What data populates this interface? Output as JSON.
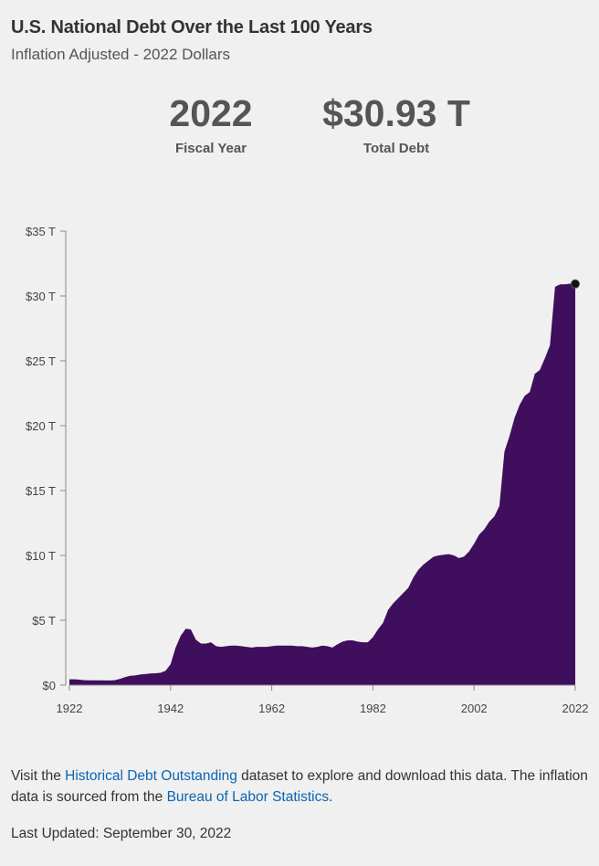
{
  "header": {
    "title": "U.S. National Debt Over the Last 100 Years",
    "subtitle": "Inflation Adjusted - 2022 Dollars"
  },
  "stats": {
    "year_value": "2022",
    "year_label": "Fiscal Year",
    "debt_value": "$30.93 T",
    "debt_label": "Total Debt"
  },
  "footer": {
    "text_1": "Visit the ",
    "link_1": "Historical Debt Outstanding",
    "text_2": " dataset to explore and download this data. The inflation data is sourced from the ",
    "link_2": "Bureau of Labor Statistics",
    "text_3": ".",
    "updated": "Last Updated: September 30, 2022"
  },
  "colors": {
    "area_fill": "#3f0e5c",
    "axis": "#888888",
    "link": "#0a64b4",
    "marker": "#111111"
  },
  "chart_data": {
    "type": "area",
    "title": "",
    "xlabel": "",
    "ylabel": "",
    "x_ticks": [
      "1922",
      "1942",
      "1962",
      "1982",
      "2002",
      "2022"
    ],
    "y_ticks": [
      "$0",
      "$5 T",
      "$10 T",
      "$15 T",
      "$20 T",
      "$25 T",
      "$30 T",
      "$35 T"
    ],
    "xlim": [
      1922,
      2022
    ],
    "ylim": [
      0,
      35
    ],
    "y_unit": "trillions of 2022 dollars",
    "grid": false,
    "highlight": {
      "x": 2022,
      "y": 30.93
    },
    "series": [
      {
        "x": [
          1922,
          1923,
          1924,
          1925,
          1926,
          1927,
          1928,
          1929,
          1930,
          1931,
          1932,
          1933,
          1934,
          1935,
          1936,
          1937,
          1938,
          1939,
          1940,
          1941,
          1942,
          1943,
          1944,
          1945,
          1946,
          1947,
          1948,
          1949,
          1950,
          1951,
          1952,
          1953,
          1954,
          1955,
          1956,
          1957,
          1958,
          1959,
          1960,
          1961,
          1962,
          1963,
          1964,
          1965,
          1966,
          1967,
          1968,
          1969,
          1970,
          1971,
          1972,
          1973,
          1974,
          1975,
          1976,
          1977,
          1978,
          1979,
          1980,
          1981,
          1982,
          1983,
          1984,
          1985,
          1986,
          1987,
          1988,
          1989,
          1990,
          1991,
          1992,
          1993,
          1994,
          1995,
          1996,
          1997,
          1998,
          1999,
          2000,
          2001,
          2002,
          2003,
          2004,
          2005,
          2006,
          2007,
          2008,
          2009,
          2010,
          2011,
          2012,
          2013,
          2014,
          2015,
          2016,
          2017,
          2018,
          2019,
          2020,
          2021,
          2022
        ],
        "y": [
          0.45,
          0.45,
          0.42,
          0.38,
          0.37,
          0.37,
          0.37,
          0.36,
          0.36,
          0.38,
          0.48,
          0.62,
          0.72,
          0.75,
          0.82,
          0.85,
          0.9,
          0.92,
          0.95,
          1.1,
          1.6,
          2.9,
          3.8,
          4.35,
          4.3,
          3.5,
          3.2,
          3.2,
          3.3,
          3.0,
          2.95,
          3.0,
          3.05,
          3.05,
          3.0,
          2.95,
          2.9,
          2.95,
          2.95,
          2.95,
          3.0,
          3.05,
          3.05,
          3.05,
          3.05,
          3.0,
          3.0,
          2.95,
          2.9,
          2.95,
          3.05,
          3.0,
          2.9,
          3.15,
          3.35,
          3.45,
          3.45,
          3.35,
          3.3,
          3.3,
          3.7,
          4.3,
          4.8,
          5.8,
          6.3,
          6.7,
          7.1,
          7.5,
          8.3,
          8.9,
          9.3,
          9.6,
          9.9,
          10.0,
          10.05,
          10.1,
          10.0,
          9.8,
          9.9,
          10.3,
          10.9,
          11.6,
          12.0,
          12.6,
          13.0,
          13.8,
          18.0,
          19.2,
          20.6,
          21.6,
          22.3,
          22.6,
          24.0,
          24.3,
          25.2,
          26.2,
          30.7,
          30.9,
          30.9,
          30.95,
          30.93
        ]
      }
    ]
  }
}
